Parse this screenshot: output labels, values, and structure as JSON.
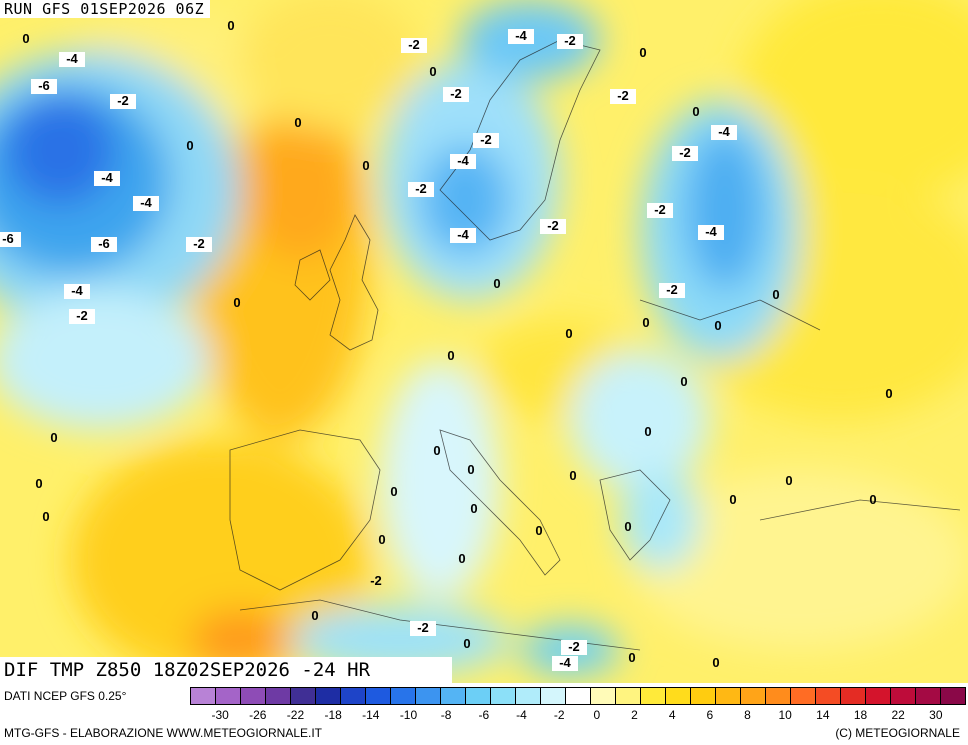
{
  "header": {
    "run_title": "RUN GFS 01SEP2026 06Z",
    "field_title": "DIF TMP Z850 18Z02SEP2026 -24 HR"
  },
  "footer": {
    "source": "DATI NCEP GFS 0.25°",
    "credit_left": "MTG-GFS - ELABORAZIONE WWW.METEOGIORNALE.IT",
    "credit_right": "(C) METEOGIORNALE"
  },
  "legend": {
    "colors": [
      "#b882d6",
      "#a464c8",
      "#8e4cb6",
      "#6e3aa4",
      "#402f95",
      "#1e2da4",
      "#1e44c8",
      "#1e5ae0",
      "#2874ea",
      "#3c94f0",
      "#54b4f4",
      "#6ccff6",
      "#8ce0f8",
      "#b0ecfa",
      "#d4f6fc",
      "#ffffff",
      "#fffbb8",
      "#fff480",
      "#ffea3a",
      "#ffdc1c",
      "#ffcc10",
      "#ffb814",
      "#ffa418",
      "#ff8c1c",
      "#ff6c24",
      "#f44c24",
      "#e42c24",
      "#d4142c",
      "#be0c3a",
      "#a40a44",
      "#8a0848"
    ],
    "tick_labels": [
      "-30",
      "-26",
      "-22",
      "-18",
      "-14",
      "-10",
      "-8",
      "-6",
      "-4",
      "-2",
      "0",
      "2",
      "4",
      "6",
      "8",
      "10",
      "14",
      "18",
      "22",
      "30"
    ]
  },
  "map_labels": [
    "0",
    "-4",
    "-6",
    "-2",
    "0",
    "0",
    "-4",
    "-4",
    "-6",
    "-6",
    "-2",
    "-4",
    "-2",
    "0",
    "-2",
    "0",
    "-2",
    "-4",
    "-2",
    "-2",
    "-4",
    "-2",
    "-2",
    "0",
    "0",
    "0",
    "-4",
    "-2",
    "0",
    "-4",
    "-2",
    "0",
    "-2",
    "-4",
    "-2",
    "0",
    "0",
    "0",
    "0",
    "0",
    "0",
    "0",
    "0",
    "0",
    "0",
    "0",
    "0",
    "0",
    "0",
    "0",
    "0",
    "0",
    "0",
    "0",
    "0",
    "0",
    "0",
    "-2",
    "0",
    "-2",
    "0",
    "-2",
    "-4",
    "0",
    "0",
    "0"
  ]
}
